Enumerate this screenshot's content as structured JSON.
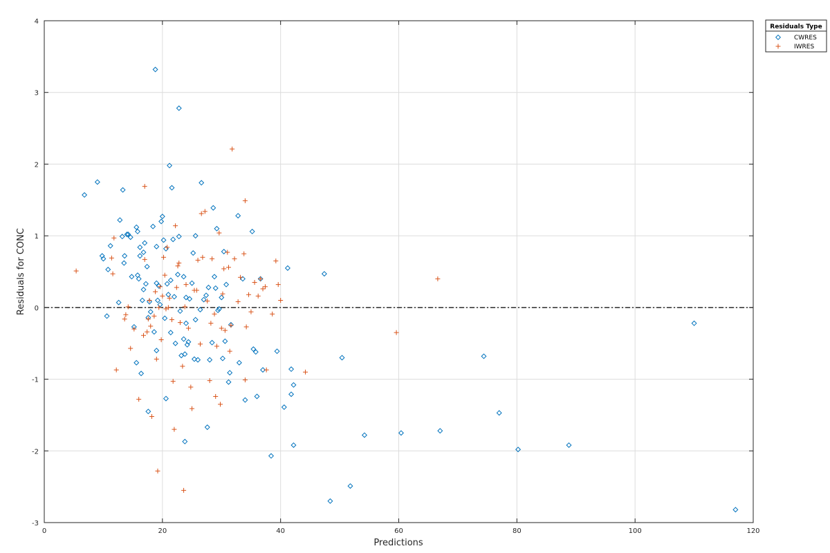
{
  "chart_data": {
    "type": "scatter",
    "title": "",
    "xlabel": "Predictions",
    "ylabel": "Residuals for CONC",
    "xlim": [
      0,
      120
    ],
    "ylim": [
      -3,
      4
    ],
    "xticks": [
      "0",
      "20",
      "40",
      "60",
      "80",
      "100",
      "120"
    ],
    "yticks": [
      "-3",
      "-2",
      "-1",
      "0",
      "1",
      "2",
      "3",
      "4"
    ],
    "grid": true,
    "reference_line": {
      "y": 0,
      "style": "dash-dot"
    },
    "legend": {
      "title": "Residuals Type",
      "placement": "outside-top-right"
    },
    "series": [
      {
        "name": "CWRES",
        "marker": "diamond",
        "color": "#0072BD",
        "points": [
          [
            6.8,
            1.57
          ],
          [
            9.0,
            1.75
          ],
          [
            9.8,
            0.72
          ],
          [
            10.0,
            0.68
          ],
          [
            10.6,
            -0.12
          ],
          [
            10.8,
            0.53
          ],
          [
            11.2,
            0.86
          ],
          [
            12.6,
            0.07
          ],
          [
            12.8,
            1.22
          ],
          [
            13.2,
            0.99
          ],
          [
            13.3,
            1.64
          ],
          [
            13.5,
            0.62
          ],
          [
            13.6,
            0.72
          ],
          [
            14.0,
            1.02
          ],
          [
            14.2,
            1.02
          ],
          [
            14.6,
            0.98
          ],
          [
            14.8,
            0.43
          ],
          [
            15.2,
            -0.27
          ],
          [
            15.6,
            1.12
          ],
          [
            15.6,
            -0.77
          ],
          [
            15.8,
            0.45
          ],
          [
            15.8,
            1.06
          ],
          [
            16.0,
            0.4
          ],
          [
            16.2,
            0.72
          ],
          [
            16.2,
            0.84
          ],
          [
            16.4,
            -0.92
          ],
          [
            16.6,
            0.1
          ],
          [
            16.8,
            0.77
          ],
          [
            16.8,
            0.25
          ],
          [
            17.0,
            0.9
          ],
          [
            17.2,
            0.33
          ],
          [
            17.4,
            0.57
          ],
          [
            17.6,
            -0.14
          ],
          [
            17.6,
            -1.45
          ],
          [
            17.8,
            0.08
          ],
          [
            18.0,
            -0.06
          ],
          [
            18.4,
            1.13
          ],
          [
            18.6,
            -0.34
          ],
          [
            18.8,
            3.32
          ],
          [
            19.0,
            0.34
          ],
          [
            19.0,
            0.85
          ],
          [
            19.0,
            -0.6
          ],
          [
            19.2,
            0.1
          ],
          [
            19.4,
            0.3
          ],
          [
            19.6,
            0.04
          ],
          [
            19.8,
            1.2
          ],
          [
            20.0,
            1.27
          ],
          [
            20.2,
            0.94
          ],
          [
            20.4,
            -0.15
          ],
          [
            20.6,
            0.82
          ],
          [
            20.6,
            -1.27
          ],
          [
            20.8,
            0.33
          ],
          [
            21.0,
            0.18
          ],
          [
            21.2,
            1.98
          ],
          [
            21.4,
            -0.35
          ],
          [
            21.4,
            0.38
          ],
          [
            21.6,
            1.67
          ],
          [
            21.8,
            0.95
          ],
          [
            22.0,
            0.15
          ],
          [
            22.2,
            -0.5
          ],
          [
            22.6,
            0.46
          ],
          [
            22.8,
            2.78
          ],
          [
            22.8,
            0.99
          ],
          [
            23.0,
            -0.05
          ],
          [
            23.2,
            -0.67
          ],
          [
            23.6,
            0.43
          ],
          [
            23.6,
            -0.44
          ],
          [
            23.8,
            -1.87
          ],
          [
            23.8,
            -0.65
          ],
          [
            24.0,
            0.14
          ],
          [
            24.0,
            -0.22
          ],
          [
            24.2,
            -0.52
          ],
          [
            24.4,
            -0.48
          ],
          [
            24.6,
            0.12
          ],
          [
            25.0,
            0.34
          ],
          [
            25.2,
            0.76
          ],
          [
            25.4,
            -0.72
          ],
          [
            25.6,
            1.0
          ],
          [
            25.6,
            -0.17
          ],
          [
            26.0,
            -0.73
          ],
          [
            26.4,
            -0.03
          ],
          [
            26.6,
            1.74
          ],
          [
            27.0,
            0.11
          ],
          [
            27.4,
            0.17
          ],
          [
            27.6,
            -1.67
          ],
          [
            27.8,
            0.28
          ],
          [
            28.0,
            -0.73
          ],
          [
            28.4,
            -0.49
          ],
          [
            28.6,
            1.39
          ],
          [
            28.8,
            0.43
          ],
          [
            29.0,
            0.27
          ],
          [
            29.2,
            1.1
          ],
          [
            29.4,
            -0.04
          ],
          [
            29.6,
            -0.02
          ],
          [
            30.0,
            0.14
          ],
          [
            30.2,
            -0.71
          ],
          [
            30.4,
            0.78
          ],
          [
            30.6,
            -0.47
          ],
          [
            30.8,
            0.32
          ],
          [
            31.2,
            -1.04
          ],
          [
            31.4,
            -0.91
          ],
          [
            31.6,
            -0.24
          ],
          [
            32.8,
            1.28
          ],
          [
            33.0,
            -0.77
          ],
          [
            33.6,
            0.4
          ],
          [
            34.0,
            -1.29
          ],
          [
            35.2,
            1.06
          ],
          [
            35.4,
            -0.58
          ],
          [
            35.8,
            -0.62
          ],
          [
            36.0,
            -1.24
          ],
          [
            36.6,
            0.4
          ],
          [
            37.0,
            -0.87
          ],
          [
            38.4,
            -2.07
          ],
          [
            39.4,
            -0.61
          ],
          [
            40.6,
            -1.39
          ],
          [
            41.2,
            0.55
          ],
          [
            41.8,
            -0.86
          ],
          [
            41.8,
            -1.21
          ],
          [
            42.2,
            -1.08
          ],
          [
            42.2,
            -1.92
          ],
          [
            47.4,
            0.47
          ],
          [
            48.4,
            -2.7
          ],
          [
            50.4,
            -0.7
          ],
          [
            51.8,
            -2.49
          ],
          [
            54.2,
            -1.78
          ],
          [
            60.4,
            -1.75
          ],
          [
            67.0,
            -1.72
          ],
          [
            74.4,
            -0.68
          ],
          [
            77.0,
            -1.47
          ],
          [
            80.2,
            -1.98
          ],
          [
            88.8,
            -1.92
          ],
          [
            110.0,
            -0.22
          ],
          [
            117.0,
            -2.82
          ]
        ]
      },
      {
        "name": "IWRES",
        "marker": "plus",
        "color": "#D95319",
        "points": [
          [
            5.4,
            0.51
          ],
          [
            11.4,
            0.69
          ],
          [
            11.6,
            0.47
          ],
          [
            11.8,
            0.97
          ],
          [
            12.2,
            -0.87
          ],
          [
            13.6,
            -0.16
          ],
          [
            13.8,
            -0.1
          ],
          [
            14.2,
            0.01
          ],
          [
            14.6,
            -0.57
          ],
          [
            15.2,
            -0.3
          ],
          [
            16.0,
            -1.28
          ],
          [
            16.8,
            -0.39
          ],
          [
            17.0,
            0.67
          ],
          [
            17.0,
            1.69
          ],
          [
            17.4,
            -0.34
          ],
          [
            17.6,
            -0.16
          ],
          [
            17.8,
            0.1
          ],
          [
            18.0,
            -0.26
          ],
          [
            18.2,
            -1.52
          ],
          [
            18.6,
            -0.12
          ],
          [
            18.8,
            0.22
          ],
          [
            19.0,
            -0.72
          ],
          [
            19.2,
            -2.28
          ],
          [
            19.4,
            0.0
          ],
          [
            19.6,
            0.29
          ],
          [
            19.8,
            -0.45
          ],
          [
            20.0,
            0.16
          ],
          [
            20.2,
            0.7
          ],
          [
            20.4,
            0.45
          ],
          [
            20.6,
            -0.02
          ],
          [
            20.8,
            0.84
          ],
          [
            21.0,
            0.0
          ],
          [
            21.2,
            0.13
          ],
          [
            21.6,
            -0.17
          ],
          [
            21.8,
            -1.03
          ],
          [
            22.0,
            -1.7
          ],
          [
            22.2,
            1.14
          ],
          [
            22.4,
            0.28
          ],
          [
            22.6,
            0.58
          ],
          [
            22.8,
            0.62
          ],
          [
            23.0,
            -0.21
          ],
          [
            23.4,
            -0.82
          ],
          [
            23.6,
            -2.55
          ],
          [
            23.8,
            0.01
          ],
          [
            24.0,
            0.32
          ],
          [
            24.4,
            -0.29
          ],
          [
            24.8,
            -1.11
          ],
          [
            25.0,
            -1.41
          ],
          [
            25.4,
            0.24
          ],
          [
            25.8,
            0.24
          ],
          [
            26.0,
            0.66
          ],
          [
            26.4,
            -0.51
          ],
          [
            26.6,
            1.31
          ],
          [
            26.8,
            0.7
          ],
          [
            27.2,
            1.34
          ],
          [
            27.6,
            0.09
          ],
          [
            28.0,
            -1.02
          ],
          [
            28.2,
            -0.22
          ],
          [
            28.4,
            0.68
          ],
          [
            28.8,
            -0.09
          ],
          [
            29.0,
            -1.24
          ],
          [
            29.2,
            -0.54
          ],
          [
            29.6,
            1.04
          ],
          [
            29.8,
            -1.35
          ],
          [
            30.0,
            -0.29
          ],
          [
            30.2,
            0.19
          ],
          [
            30.4,
            0.54
          ],
          [
            30.6,
            -0.32
          ],
          [
            31.0,
            0.77
          ],
          [
            31.2,
            0.56
          ],
          [
            31.4,
            -0.61
          ],
          [
            31.6,
            -0.25
          ],
          [
            31.8,
            2.21
          ],
          [
            32.2,
            0.68
          ],
          [
            32.8,
            0.08
          ],
          [
            33.2,
            0.42
          ],
          [
            33.8,
            0.75
          ],
          [
            34.0,
            -1.01
          ],
          [
            34.0,
            1.49
          ],
          [
            34.2,
            -0.27
          ],
          [
            34.6,
            0.18
          ],
          [
            35.0,
            -0.06
          ],
          [
            35.6,
            0.35
          ],
          [
            36.2,
            0.16
          ],
          [
            36.6,
            0.4
          ],
          [
            37.0,
            0.26
          ],
          [
            37.4,
            0.29
          ],
          [
            37.6,
            -0.87
          ],
          [
            38.6,
            -0.09
          ],
          [
            39.2,
            0.65
          ],
          [
            39.6,
            0.32
          ],
          [
            40.0,
            0.1
          ],
          [
            44.2,
            -0.9
          ],
          [
            59.6,
            -0.35
          ],
          [
            66.6,
            0.4
          ]
        ]
      }
    ]
  }
}
